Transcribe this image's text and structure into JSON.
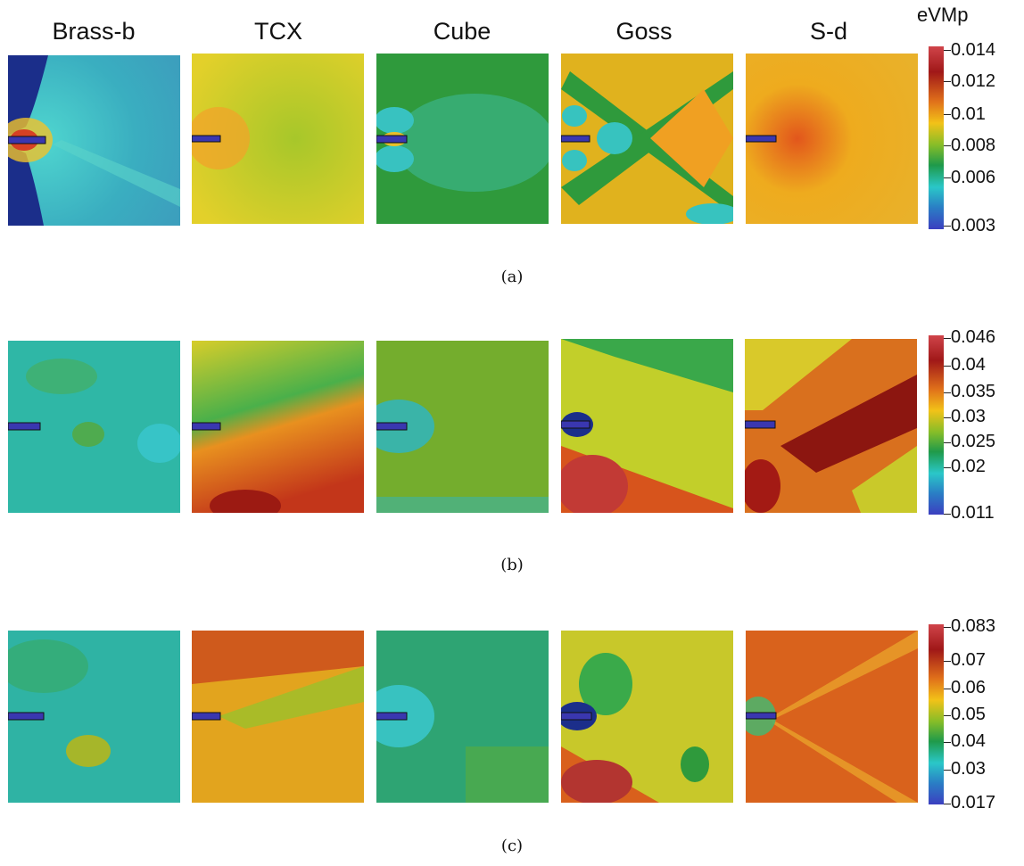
{
  "figure": {
    "columns": [
      "Brass-b",
      "TCX",
      "Cube",
      "Goss",
      "S-d"
    ],
    "colorbar_title": "eVMp",
    "rows": [
      {
        "caption": "(a)",
        "ticks": [
          "0.014",
          "0.012",
          "0.01",
          "0.008",
          "0.006",
          "0.003"
        ],
        "scale": [
          0.003,
          0.014
        ],
        "maps": [
          {
            "name": "Brass-b",
            "base": "#3fb7be",
            "left_region": "#1b2e8a"
          },
          {
            "name": "TCX",
            "base": "#bcd12b",
            "hot": "#f0a022"
          },
          {
            "name": "Cube",
            "base": "#2f9a3c",
            "cool": "#38c2c0"
          },
          {
            "name": "Goss",
            "base": "#e0b21e",
            "cool": "#37c3bf"
          },
          {
            "name": "S-d",
            "base": "#eeab1e",
            "hot": "#e07a1a"
          }
        ]
      },
      {
        "caption": "(b)",
        "ticks": [
          "0.046",
          "0.04",
          "0.035",
          "0.03",
          "0.025",
          "0.02",
          "0.011"
        ],
        "scale": [
          0.011,
          0.046
        ],
        "maps": [
          {
            "name": "Brass-b",
            "base": "#2fb7a6"
          },
          {
            "name": "TCX",
            "base": "#e8901f",
            "hot": "#9c1a12"
          },
          {
            "name": "Cube",
            "base": "#74ad2d"
          },
          {
            "name": "Goss",
            "base": "#c2cf2a",
            "hot": "#c23a35"
          },
          {
            "name": "S-d",
            "base": "#d9701e",
            "hot": "#8c1610"
          }
        ]
      },
      {
        "caption": "(c)",
        "ticks": [
          "0.083",
          "0.07",
          "0.06",
          "0.05",
          "0.04",
          "0.03",
          "0.017"
        ],
        "scale": [
          0.017,
          0.083
        ],
        "maps": [
          {
            "name": "Brass-b",
            "base": "#2fb3a4"
          },
          {
            "name": "TCX",
            "base": "#e2a41e",
            "hot": "#cf5a1c"
          },
          {
            "name": "Cube",
            "base": "#2ea473"
          },
          {
            "name": "Goss",
            "base": "#c8c82a",
            "hot": "#b33530"
          },
          {
            "name": "S-d",
            "base": "#d9621c",
            "hot": "#c24418"
          }
        ]
      }
    ]
  }
}
